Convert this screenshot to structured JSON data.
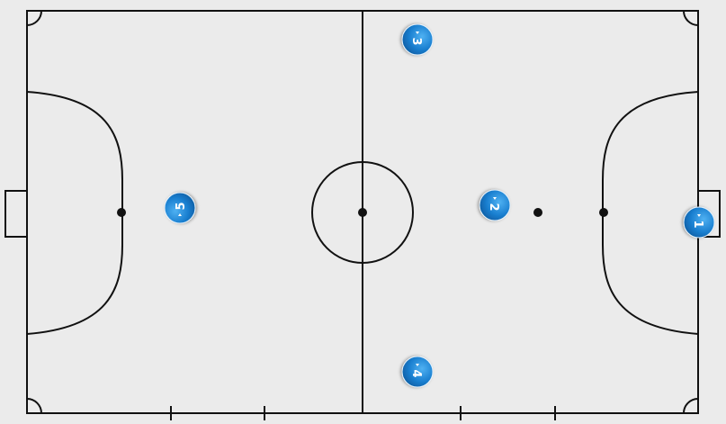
{
  "court": {
    "background_color": "#ebebeb",
    "line_color": "#111111"
  },
  "players": [
    {
      "number": "1",
      "team_color": "#1a7fd0"
    },
    {
      "number": "2",
      "team_color": "#1a7fd0"
    },
    {
      "number": "3",
      "team_color": "#1a7fd0"
    },
    {
      "number": "4",
      "team_color": "#1a7fd0"
    },
    {
      "number": "5",
      "team_color": "#1a7fd0"
    }
  ]
}
